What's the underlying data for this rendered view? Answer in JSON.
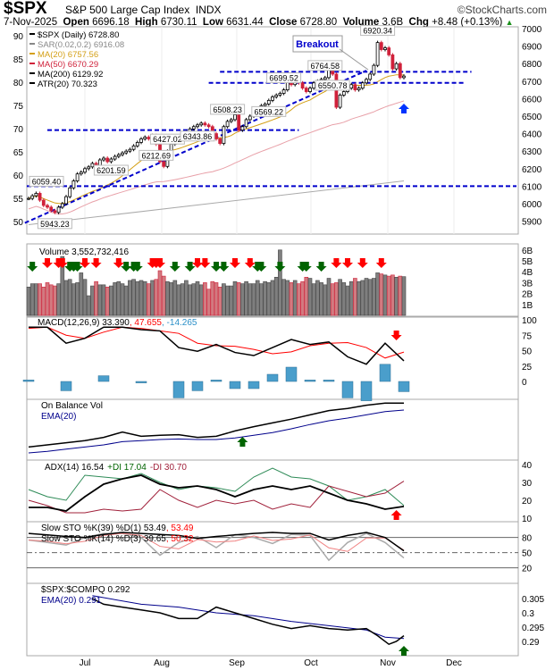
{
  "header": {
    "symbol": "$SPX",
    "name": "S&P 500 Large Cap Index",
    "exchange": "INDX",
    "brand": "©StockCharts.com",
    "date": "7-Nov-2025",
    "open_label": "Open",
    "open": "6696.18",
    "high_label": "High",
    "high": "6730.11",
    "low_label": "Low",
    "low": "6631.44",
    "close_label": "Close",
    "close": "6728.80",
    "volume_label": "Volume",
    "volume": "3.6B",
    "chg_label": "Chg",
    "chg": "+8.48 (+0.13%)"
  },
  "colors": {
    "up": "#000000",
    "down": "#d0213a",
    "ma20": "#d4a017",
    "ma50": "#d0213a",
    "ma200": "#000000",
    "level": "#0000cc",
    "volgray": "#7f7f7f",
    "volred": "#d27a80",
    "hist": "#4a9ecb",
    "green_arrow": "#006400",
    "red_arrow": "#ff0000"
  },
  "chart_data": [
    {
      "type": "candlestick",
      "title": "$SPX (Daily) 6728.80",
      "legend": [
        "$SPX (Daily) 6728.80",
        "SAR(0.02,0.2) 6916.08",
        "MA(20) 6757.56",
        "MA(50) 6670.29",
        "MA(200) 6129.92",
        "ATR(20) 70.323"
      ],
      "ylim": [
        5850,
        7050
      ],
      "right_ticks": [
        7000,
        6900,
        6800,
        6700,
        6600,
        6500,
        6400,
        6300,
        6200,
        6100,
        6000,
        5900
      ],
      "left_ticks": [
        90,
        85,
        80,
        75,
        70,
        65,
        60,
        55,
        50
      ],
      "x_ticks": [
        "Jul",
        "Aug",
        "Sep",
        "Oct",
        "Nov",
        "Dec"
      ],
      "close": [
        6030,
        6045,
        6059,
        6020,
        5990,
        5980,
        5960,
        5950,
        5980,
        6000,
        6040,
        6090,
        6130,
        6170,
        6180,
        6200,
        6210,
        6230,
        6201.59,
        6250,
        6260,
        6240,
        6255,
        6270,
        6280,
        6290,
        6300,
        6310,
        6330,
        6350,
        6370,
        6380,
        6370,
        6390,
        6340,
        6240,
        6212.69,
        6300,
        6340,
        6350,
        6370,
        6390,
        6410,
        6427.02,
        6440,
        6450,
        6460,
        6450,
        6440,
        6400,
        6370,
        6343.86,
        6440,
        6470,
        6480,
        6508.23,
        6420,
        6440,
        6480,
        6500,
        6510,
        6530,
        6560,
        6569.22,
        6590,
        6610,
        6620,
        6630,
        6650,
        6699.52,
        6680,
        6700,
        6690,
        6660,
        6640,
        6660,
        6690,
        6700,
        6710,
        6720,
        6764.58,
        6740,
        6550.78,
        6620,
        6640,
        6660,
        6680,
        6650,
        6660,
        6690,
        6710,
        6740,
        6790,
        6920.34,
        6880,
        6890,
        6850,
        6770,
        6800,
        6720,
        6728.8
      ],
      "ma200_start": 5880,
      "ma200_end": 6129.92,
      "levels": [
        {
          "value": 6753,
          "from": 51,
          "to": 118
        },
        {
          "value": 6690,
          "from": 48,
          "to": 116
        },
        {
          "value": 6420,
          "from": 5,
          "to": 72
        },
        {
          "value": 6100,
          "from": -1,
          "to": 130
        }
      ],
      "trendline": [
        [
          -1,
          5890
        ],
        [
          90,
          6760
        ]
      ],
      "annotations": [
        {
          "text": "6059.40",
          "bar": 2,
          "pos": "above"
        },
        {
          "text": "5943.23",
          "bar": 7,
          "pos": "below"
        },
        {
          "text": "6201.59",
          "bar": 22,
          "pos": "below"
        },
        {
          "text": "6212.69",
          "bar": 34,
          "pos": "below"
        },
        {
          "text": "6427.02",
          "bar": 37,
          "pos": "above"
        },
        {
          "text": "6343.86",
          "bar": 45,
          "pos": "below"
        },
        {
          "text": "6508.23",
          "bar": 53,
          "pos": "above"
        },
        {
          "text": "6569.22",
          "bar": 64,
          "pos": "below"
        },
        {
          "text": "6699.52",
          "bar": 68,
          "pos": "above"
        },
        {
          "text": "6764.58",
          "bar": 79,
          "pos": "above"
        },
        {
          "text": "6550.78",
          "bar": 81,
          "pos": "below"
        },
        {
          "text": "6920.34",
          "bar": 93,
          "pos": "above"
        }
      ],
      "callout": "Breakout"
    },
    {
      "type": "bar",
      "title": "Volume 3,552,732,416",
      "ticks": [
        "6B",
        "5B",
        "4B",
        "3B",
        "2B",
        "1B"
      ],
      "ylim": [
        0,
        6.5
      ],
      "values": [
        2.6,
        2.9,
        2.9,
        2.9,
        2.6,
        3.0,
        2.8,
        2.7,
        2.9,
        5.4,
        3.2,
        3.3,
        2.9,
        3.0,
        3.9,
        3.3,
        1.8,
        2.7,
        3.1,
        2.8,
        2.8,
        2.6,
        2.7,
        3.0,
        3.1,
        2.9,
        2.7,
        3.2,
        3.3,
        3.1,
        3.2,
        3.1,
        2.9,
        3.2,
        3.3,
        4.1,
        3.6,
        3.1,
        3.0,
        3.2,
        2.8,
        2.9,
        3.2,
        2.8,
        2.9,
        3.1,
        2.8,
        3.0,
        2.4,
        3.1,
        3.0,
        2.6,
        2.9,
        2.7,
        2.7,
        3.1,
        3.0,
        2.9,
        3.1,
        2.9,
        2.9,
        3.2,
        2.9,
        3.1,
        3.0,
        3.2,
        3.5,
        6.0,
        3.3,
        3.2,
        3.0,
        3.2,
        2.9,
        3.1,
        3.5,
        3.4,
        2.9,
        3.2,
        3.0,
        2.8,
        3.4,
        2.9,
        3.0,
        3.3,
        3.0,
        2.7,
        3.1,
        3.4,
        3.1,
        3.2,
        3.4,
        3.3,
        3.4,
        3.9,
        3.8,
        3.7,
        3.6,
        3.7,
        3.5,
        3.6,
        3.55
      ],
      "green_signals": [
        1,
        11,
        12,
        13,
        26,
        28,
        29,
        39,
        43,
        50,
        52,
        61,
        62,
        67,
        73,
        74,
        78
      ],
      "red_signals": [
        5,
        8,
        9,
        15,
        18,
        24,
        33,
        34,
        35,
        45,
        47,
        55,
        59,
        82,
        85,
        89,
        94
      ]
    },
    {
      "type": "line",
      "title": "MACD(12,26,9) 33.390",
      "signal_text": ", 47.655",
      "hist_text": ", -14.265",
      "ticks": [
        100,
        75,
        50,
        25,
        0
      ],
      "x_step": 5,
      "macd": [
        88,
        88,
        62,
        70,
        88,
        88,
        84,
        82,
        55,
        49,
        60,
        47,
        42,
        55,
        68,
        60,
        64,
        40,
        28,
        62,
        33.39
      ],
      "signal": [
        86,
        88,
        75,
        70,
        80,
        88,
        86,
        82,
        78,
        62,
        58,
        57,
        52,
        45,
        48,
        58,
        62,
        63,
        55,
        38,
        47.66
      ],
      "red_signal_bar": 98
    },
    {
      "type": "line",
      "title": "On Balance Vol",
      "ema_title": "EMA(20)",
      "x_step": 5,
      "obv_level": [
        10,
        14,
        18,
        22,
        28,
        38,
        30,
        32,
        33,
        28,
        30,
        40,
        48,
        55,
        62,
        70,
        78,
        82,
        88,
        92,
        92
      ],
      "ema_level": [
        5,
        8,
        12,
        16,
        20,
        26,
        28,
        30,
        31,
        30,
        30,
        33,
        38,
        43,
        50,
        58,
        65,
        70,
        76,
        82,
        85
      ],
      "green_signal_bar": 57
    },
    {
      "type": "line",
      "title": "ADX(14) 16.54",
      "pdi_text": "+DI 17.04",
      "mdi_text": "-DI 30.70",
      "ticks": [
        40,
        30,
        20,
        10
      ],
      "x_step": 5,
      "adx": [
        16,
        16,
        14,
        22,
        29,
        32,
        34,
        29,
        27,
        28,
        26,
        22,
        26,
        28,
        26,
        28,
        24,
        20,
        18,
        15,
        16.54
      ],
      "pdi": [
        26,
        22,
        20,
        34,
        33,
        32,
        35,
        30,
        26,
        28,
        27,
        25,
        33,
        38,
        33,
        32,
        28,
        20,
        22,
        26,
        17.04
      ],
      "mdi": [
        20,
        17,
        13,
        13,
        15,
        14,
        15,
        26,
        20,
        16,
        20,
        18,
        20,
        15,
        18,
        16,
        28,
        25,
        22,
        24,
        30.7
      ],
      "red_signal_bar": 98
    },
    {
      "type": "line",
      "title1": "Slow STO %K(39) %D(1) 53.49",
      "title1_red": ", 53.49",
      "title2": "Slow STO %K(14) %D(3) 39.65",
      "title2_red": ", 50.32",
      "ticks": [
        80,
        50,
        20
      ],
      "x_step": 5,
      "k39": [
        88,
        85,
        82,
        80,
        86,
        90,
        88,
        86,
        84,
        78,
        82,
        85,
        88,
        90,
        88,
        88,
        75,
        84,
        90,
        80,
        53.49
      ],
      "k14": [
        75,
        70,
        65,
        80,
        88,
        88,
        80,
        45,
        70,
        82,
        60,
        86,
        80,
        68,
        86,
        84,
        35,
        70,
        88,
        70,
        39.65
      ]
    },
    {
      "type": "line",
      "title": "$SPX:$COMPQ 0.292",
      "ema_title": "EMA(20) 0.291",
      "ticks": [
        0.305,
        0.3,
        0.295,
        0.29
      ],
      "ratio": [
        [
          17,
          0.305
        ],
        [
          20,
          0.303
        ],
        [
          25,
          0.302
        ],
        [
          30,
          0.301
        ],
        [
          35,
          0.3
        ],
        [
          40,
          0.298
        ],
        [
          45,
          0.298
        ],
        [
          50,
          0.302
        ],
        [
          55,
          0.3
        ],
        [
          60,
          0.298
        ],
        [
          65,
          0.296
        ],
        [
          70,
          0.2945
        ],
        [
          75,
          0.2955
        ],
        [
          80,
          0.2945
        ],
        [
          85,
          0.294
        ],
        [
          90,
          0.2945
        ],
        [
          93,
          0.292
        ],
        [
          96,
          0.289
        ],
        [
          98,
          0.29
        ],
        [
          100,
          0.292
        ]
      ],
      "ema": [
        [
          17,
          0.306
        ],
        [
          30,
          0.303
        ],
        [
          40,
          0.302
        ],
        [
          50,
          0.3
        ],
        [
          60,
          0.299
        ],
        [
          70,
          0.297
        ],
        [
          80,
          0.2955
        ],
        [
          90,
          0.294
        ],
        [
          95,
          0.2915
        ],
        [
          100,
          0.291
        ]
      ],
      "green_signal_bar": 100
    }
  ]
}
